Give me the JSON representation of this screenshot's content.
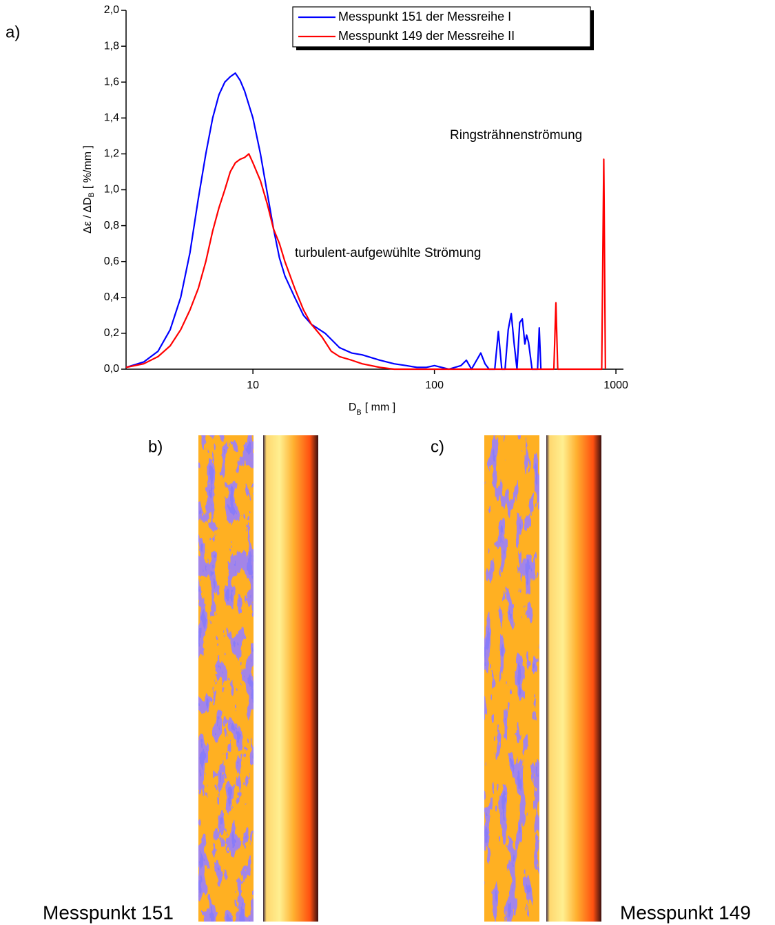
{
  "chart_data": {
    "type": "line",
    "ylabel": "Δε / ΔD",
    "ylabel_sub": "B",
    "ylabel_unit": "[ %/mm ]",
    "xlabel": "D",
    "xlabel_sub": "B",
    "xlabel_unit": "[ mm ]",
    "xlog": true,
    "xlim": [
      2,
      1100
    ],
    "xticks": [
      10,
      100,
      1000
    ],
    "ylim": [
      0,
      2.0
    ],
    "yticks": [
      {
        "value": 0,
        "label": "0,0"
      },
      {
        "value": 0.2,
        "label": "0,2"
      },
      {
        "value": 0.4,
        "label": "0,4"
      },
      {
        "value": 0.6,
        "label": "0,6"
      },
      {
        "value": 0.8,
        "label": "0,8"
      },
      {
        "value": 1.0,
        "label": "1,0"
      },
      {
        "value": 1.2,
        "label": "1,2"
      },
      {
        "value": 1.4,
        "label": "1,4"
      },
      {
        "value": 1.6,
        "label": "1,6"
      },
      {
        "value": 1.8,
        "label": "1,8"
      },
      {
        "value": 2.0,
        "label": "2,0"
      }
    ],
    "legend": "upper right",
    "series": [
      {
        "name": "Messpunkt 151 der Messreihe I",
        "color": "#0000ff",
        "x": [
          2,
          2.5,
          3,
          3.5,
          4,
          4.5,
          5,
          5.5,
          6,
          6.5,
          7,
          7.5,
          8,
          8.5,
          9,
          10,
          11,
          12,
          13,
          14,
          15,
          17,
          19,
          21,
          25,
          30,
          35,
          40,
          50,
          60,
          70,
          80,
          90,
          100,
          120,
          140,
          150,
          160,
          180,
          190,
          200,
          215,
          225,
          235,
          245,
          255,
          265,
          275,
          285,
          295,
          305,
          315,
          322,
          330,
          345,
          370,
          378,
          386
        ],
        "values": [
          0.01,
          0.04,
          0.1,
          0.22,
          0.4,
          0.65,
          0.95,
          1.2,
          1.4,
          1.53,
          1.6,
          1.63,
          1.65,
          1.61,
          1.55,
          1.4,
          1.2,
          0.98,
          0.78,
          0.62,
          0.52,
          0.4,
          0.3,
          0.25,
          0.2,
          0.12,
          0.09,
          0.08,
          0.05,
          0.03,
          0.02,
          0.01,
          0.01,
          0.02,
          0,
          0.02,
          0.05,
          0,
          0.09,
          0.03,
          0,
          0,
          0.21,
          0,
          0,
          0.22,
          0.31,
          0.14,
          0,
          0.26,
          0.28,
          0.14,
          0.19,
          0.15,
          0,
          0,
          0.23,
          0
        ]
      },
      {
        "name": "Messpunkt 149 der Messreihe II",
        "color": "#ff0000",
        "x": [
          2,
          2.5,
          3,
          3.5,
          4,
          4.5,
          5,
          5.5,
          6,
          6.5,
          7,
          7.5,
          8,
          8.5,
          9,
          9.5,
          10,
          11,
          12,
          13,
          14,
          15,
          17,
          19,
          21,
          24,
          27,
          30,
          35,
          40,
          50,
          60,
          455,
          467,
          478,
          835,
          857,
          875
        ],
        "values": [
          0.01,
          0.03,
          0.07,
          0.13,
          0.22,
          0.33,
          0.45,
          0.6,
          0.77,
          0.9,
          1.0,
          1.1,
          1.15,
          1.17,
          1.18,
          1.2,
          1.15,
          1.05,
          0.92,
          0.78,
          0.7,
          0.6,
          0.45,
          0.33,
          0.25,
          0.18,
          0.1,
          0.07,
          0.05,
          0.03,
          0.01,
          0,
          0,
          0.37,
          0,
          0,
          1.17,
          0
        ]
      }
    ],
    "annotations": [
      {
        "text": "turbulent-aufgewühlte Strömung",
        "color": "#0000ff"
      },
      {
        "text": "Ringsträhnenströmung",
        "color": "#ff0000"
      }
    ]
  },
  "panel_labels": [
    "a)",
    "b)",
    "c)"
  ],
  "captions": [
    {
      "text": "Messpunkt 151",
      "color": "#0000ff"
    },
    {
      "text": "Messpunkt 149",
      "color": "#ff0000"
    }
  ]
}
